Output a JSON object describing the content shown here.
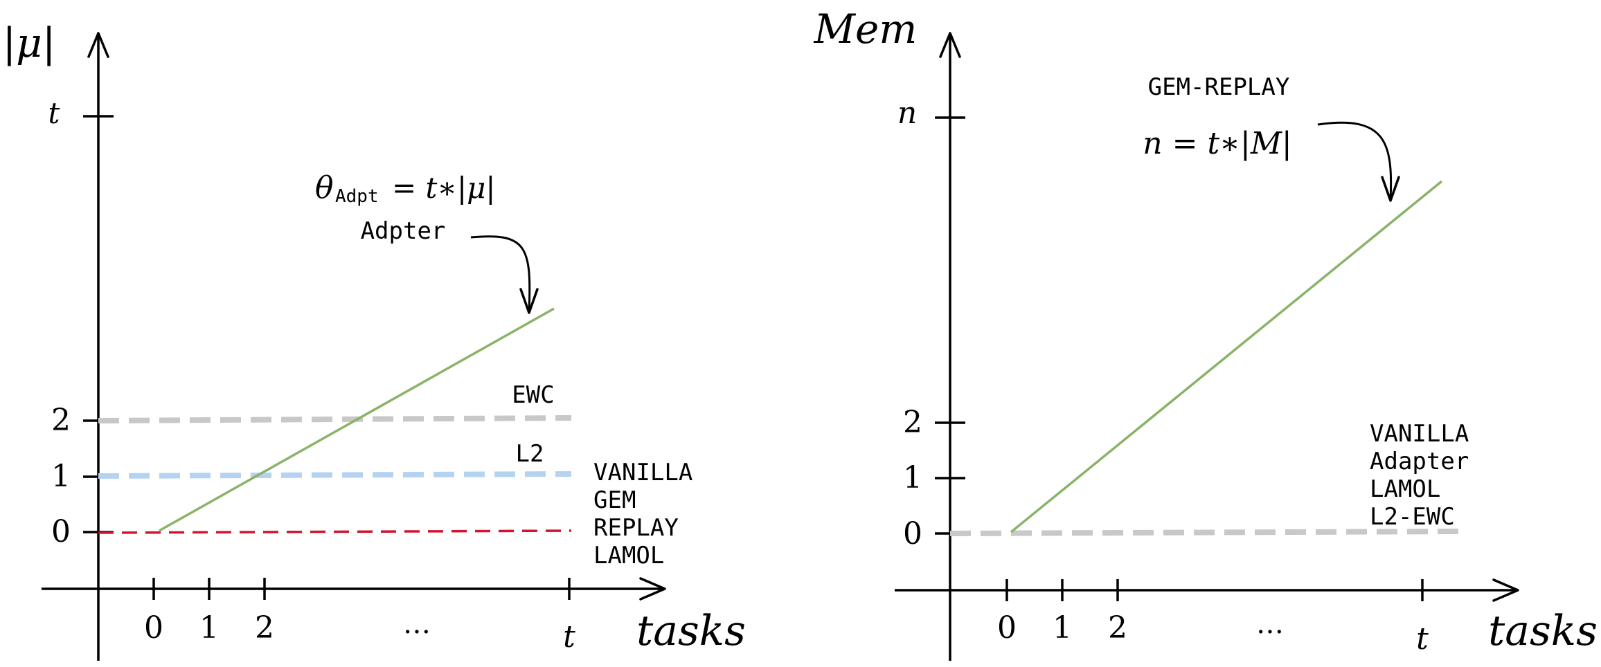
{
  "left_panel": {
    "y_axis_label": "|μ|",
    "x_axis_label": "tasks",
    "y_ticks": [
      "t",
      "2",
      "1",
      "0"
    ],
    "x_ticks": [
      "0",
      "1",
      "2",
      "…",
      "t"
    ],
    "formula": {
      "theta": "θ",
      "subscript": "Adpt",
      "rhs": "= t∗|μ|"
    },
    "line_labels": {
      "adapter": "Adpter",
      "ewc": "EWC",
      "l2": "L2",
      "zero_group": [
        "VANILLA",
        "GEM",
        "REPLAY",
        "LAMOL"
      ]
    },
    "colors": {
      "adapter": "#8ab36a",
      "ewc": "#c8c8c8",
      "l2": "#b5d3f0",
      "zero": "#d0142c"
    }
  },
  "right_panel": {
    "y_axis_label": "Mem",
    "x_axis_label": "tasks",
    "y_ticks": [
      "n",
      "2",
      "1",
      "0"
    ],
    "x_ticks": [
      "0",
      "1",
      "2",
      "…",
      "t"
    ],
    "formula": "n = t∗|M|",
    "line_labels": {
      "gem_replay": "GEM-REPLAY",
      "zero_group": [
        "VANILLA",
        "Adapter",
        "LAMOL",
        "L2-EWC"
      ]
    },
    "colors": {
      "gem_replay": "#8ab36a",
      "zero": "#c8c8c8"
    }
  }
}
